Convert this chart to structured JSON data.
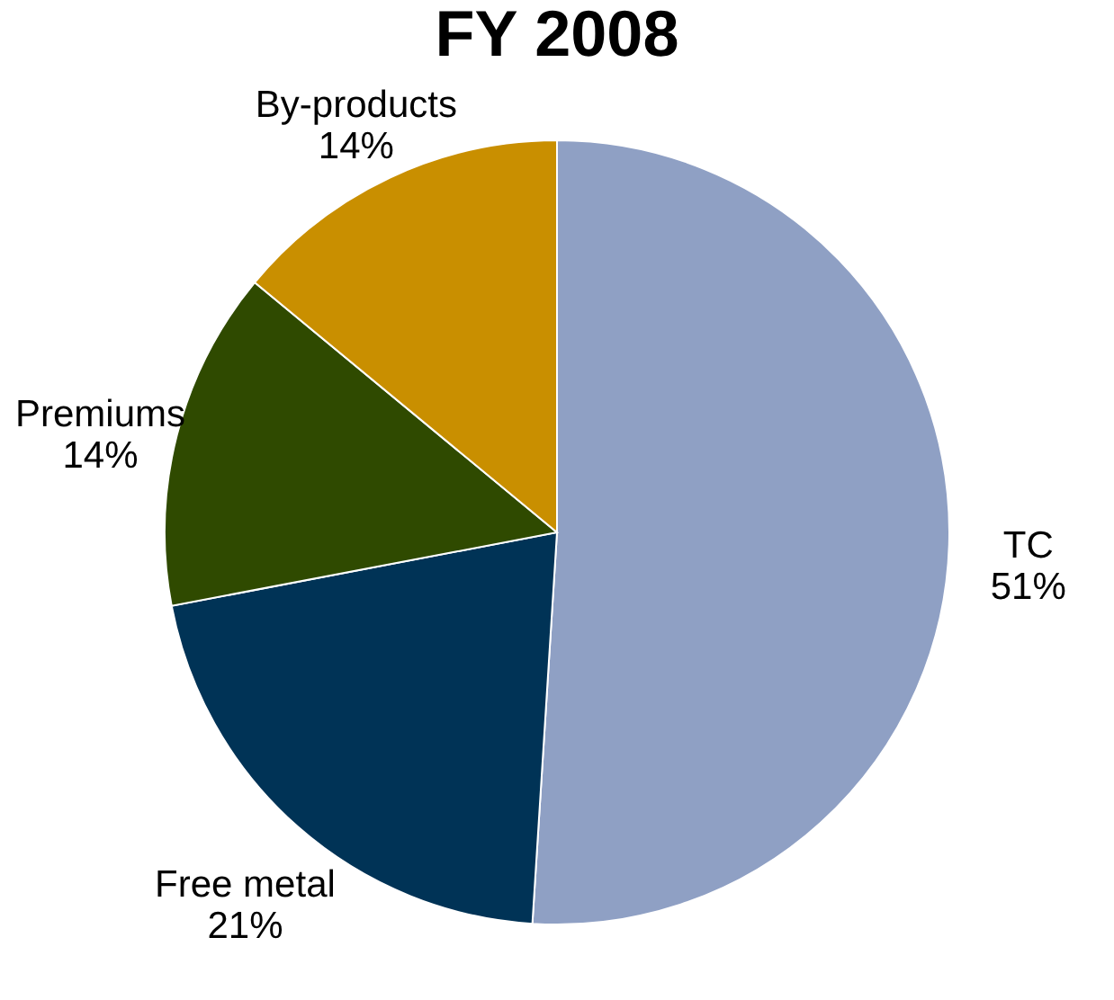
{
  "chart_data": {
    "type": "pie",
    "title": "FY 2008",
    "categories": [
      "TC",
      "Free metal",
      "Premiums",
      "By-products"
    ],
    "values": [
      51,
      21,
      14,
      14
    ],
    "value_labels": [
      "51%",
      "21%",
      "14%",
      "14%"
    ],
    "colors": [
      "#8fa0c4",
      "#003356",
      "#2f4a00",
      "#c98f00"
    ],
    "legend": false
  }
}
